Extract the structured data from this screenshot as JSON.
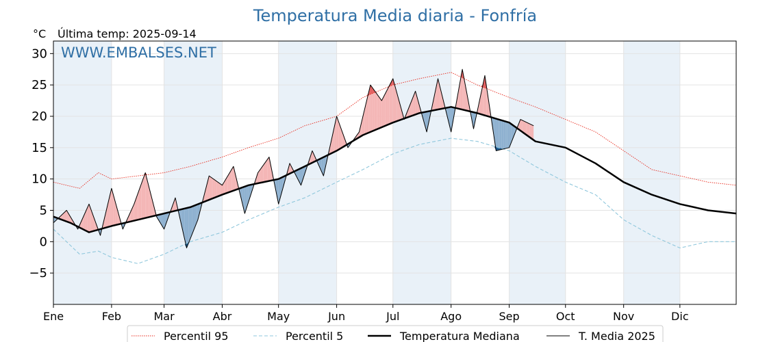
{
  "chart_data": {
    "type": "line",
    "title": "Temperatura Media diaria - Fonfría",
    "unit_label": "°C",
    "subtitle": "Última temp: 2025-09-14",
    "watermark": "WWW.EMBALSES.NET",
    "ylim": [
      -10,
      32
    ],
    "yticks": [
      -5,
      0,
      5,
      10,
      15,
      20,
      25,
      30
    ],
    "ytick_labels": [
      "−5",
      "0",
      "5",
      "10",
      "15",
      "20",
      "25",
      "30"
    ],
    "x_domain_days": [
      1,
      365
    ],
    "months": [
      "Ene",
      "Feb",
      "Mar",
      "Abr",
      "May",
      "Jun",
      "Jul",
      "Ago",
      "Sep",
      "Oct",
      "Nov",
      "Dic"
    ],
    "month_start_days": [
      1,
      32,
      60,
      91,
      121,
      152,
      182,
      213,
      244,
      274,
      305,
      335
    ],
    "grid": true,
    "legend_position": "bottom-center",
    "colors": {
      "p95": "#e8291c",
      "p5": "#8fc7dc",
      "median": "#000000",
      "current": "#000000",
      "above_fill": "#f4b6b6",
      "above_p95_fill": "#e26060",
      "below_fill": "#8eb1d0",
      "below_p5_fill": "#1e5d93",
      "title": "#2f6fa5",
      "band": "#e9f1f8"
    },
    "series": [
      {
        "name": "Percentil 95",
        "style": "dotted-red-thin",
        "days": [
          1,
          15,
          25,
          32,
          46,
          60,
          74,
          91,
          105,
          121,
          135,
          152,
          166,
          182,
          196,
          213,
          227,
          244,
          258,
          274,
          290,
          305,
          320,
          335,
          350,
          365
        ],
        "values": [
          9.5,
          8.5,
          11.0,
          10.0,
          10.5,
          11.0,
          12.0,
          13.5,
          15.0,
          16.5,
          18.5,
          20.0,
          23.0,
          25.0,
          26.0,
          27.0,
          25.0,
          23.0,
          21.5,
          19.5,
          17.5,
          14.5,
          11.5,
          10.5,
          9.5,
          9.0
        ]
      },
      {
        "name": "Percentil 5",
        "style": "dashed-lightblue-thin",
        "days": [
          1,
          15,
          25,
          32,
          46,
          60,
          74,
          91,
          105,
          121,
          135,
          152,
          166,
          182,
          196,
          213,
          227,
          244,
          258,
          274,
          290,
          305,
          320,
          335,
          350,
          365
        ],
        "values": [
          2.0,
          -2.0,
          -1.5,
          -2.5,
          -3.5,
          -2.0,
          0.0,
          1.5,
          3.5,
          5.5,
          7.0,
          9.5,
          11.5,
          14.0,
          15.5,
          16.5,
          16.0,
          14.5,
          12.0,
          9.5,
          7.5,
          3.5,
          1.0,
          -1.0,
          0.0,
          0.0
        ]
      },
      {
        "name": "Temperatura Mediana",
        "style": "solid-black-thick",
        "days": [
          1,
          10,
          20,
          32,
          46,
          60,
          74,
          91,
          105,
          121,
          135,
          152,
          166,
          182,
          196,
          213,
          227,
          244,
          258,
          274,
          290,
          305,
          320,
          335,
          350,
          365
        ],
        "values": [
          4.0,
          3.0,
          1.5,
          2.5,
          3.5,
          4.5,
          5.5,
          7.5,
          9.0,
          10.0,
          12.0,
          14.5,
          17.0,
          19.0,
          20.5,
          21.5,
          20.5,
          19.0,
          16.0,
          15.0,
          12.5,
          9.5,
          7.5,
          6.0,
          5.0,
          4.5
        ]
      },
      {
        "name": "T. Media 2025",
        "style": "solid-black-thin",
        "days": [
          1,
          8,
          14,
          20,
          26,
          32,
          38,
          44,
          50,
          56,
          60,
          66,
          72,
          78,
          84,
          91,
          97,
          103,
          110,
          116,
          121,
          127,
          133,
          139,
          145,
          152,
          158,
          164,
          170,
          176,
          182,
          188,
          194,
          200,
          206,
          213,
          219,
          225,
          231,
          237,
          244,
          250,
          257
        ],
        "values": [
          3.0,
          5.0,
          2.0,
          6.0,
          1.0,
          8.5,
          2.0,
          6.0,
          11.0,
          4.0,
          2.0,
          7.0,
          -1.0,
          3.5,
          10.5,
          9.0,
          12.0,
          4.5,
          11.0,
          13.5,
          6.0,
          12.5,
          9.0,
          14.5,
          10.5,
          20.0,
          15.0,
          17.5,
          25.0,
          22.5,
          26.0,
          19.5,
          24.0,
          17.5,
          26.0,
          17.5,
          27.5,
          18.0,
          26.5,
          14.5,
          15.0,
          19.5,
          18.5
        ]
      }
    ]
  },
  "legend": {
    "items": [
      "Percentil 95",
      "Percentil 5",
      "Temperatura Mediana",
      "T. Media 2025"
    ]
  }
}
